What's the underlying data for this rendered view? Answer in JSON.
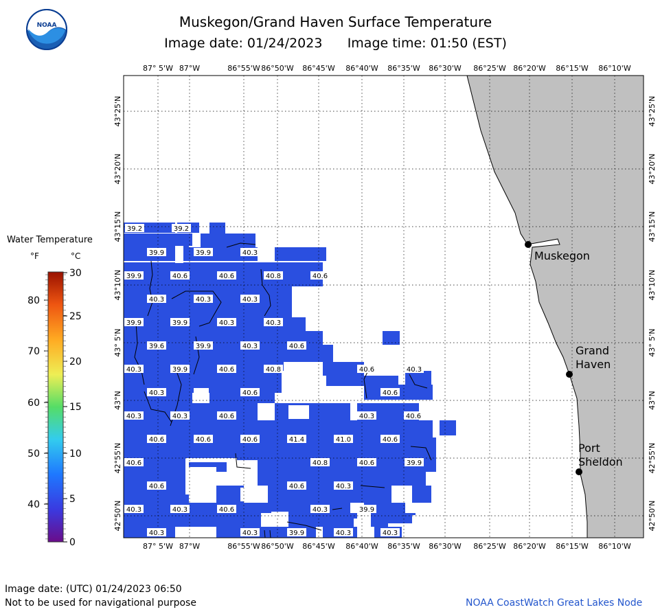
{
  "title": "Muskegon/Grand Haven Surface Temperature",
  "image_date_label": "Image date: 01/24/2023",
  "image_time_label": "Image time: 01:50 (EST)",
  "lon_labels": [
    "87° 5'W",
    "87°W",
    "86°55'W",
    "86°50'W",
    "86°45'W",
    "86°40'W",
    "86°35'W",
    "86°30'W",
    "86°25'W",
    "86°20'W",
    "86°15'W",
    "86°10'W"
  ],
  "lat_labels": [
    "43°25'N",
    "43°20'N",
    "43°15'N",
    "43°10'N",
    "43° 5'N",
    "43°N",
    "42°55'N",
    "42°50'N"
  ],
  "legend": {
    "title": "Water Temperature",
    "unit_f": "°F",
    "unit_c": "°C",
    "f_ticks": [
      "80",
      "70",
      "60",
      "50",
      "40"
    ],
    "c_ticks": [
      "30",
      "25",
      "20",
      "15",
      "10",
      "5",
      "0"
    ]
  },
  "cities": [
    {
      "name": "Muskegon"
    },
    {
      "name": "Grand Haven"
    },
    {
      "name": "Port Sheldon"
    }
  ],
  "temperature_labels": [
    [
      "39.2",
      "39.2"
    ],
    [
      "39.9",
      "39.9",
      "40.3"
    ],
    [
      "39.9",
      "40.6",
      "40.6",
      "40.8",
      "40.6"
    ],
    [
      "40.3",
      "40.3",
      "40.3"
    ],
    [
      "39.9",
      "39.9",
      "40.3",
      "40.3"
    ],
    [
      "39.6",
      "39.9",
      "40.3",
      "40.6"
    ],
    [
      "40.3",
      "39.9",
      "40.6",
      "40.8",
      "40.6",
      "40.3"
    ],
    [
      "40.3",
      "40.6",
      "40.6"
    ],
    [
      "40.3",
      "40.3",
      "40.6",
      "40.3",
      "40.6"
    ],
    [
      "40.6",
      "40.6",
      "40.6",
      "41.4",
      "41.0",
      "40.6"
    ],
    [
      "40.6",
      "40.8",
      "40.6",
      "39.9"
    ],
    [
      "40.6",
      "40.6",
      "40.3"
    ],
    [
      "40.3",
      "40.3",
      "40.6",
      "40.3",
      "39.9"
    ],
    [
      "40.3",
      "40.3",
      "39.9",
      "40.3",
      "40.3"
    ]
  ],
  "footer": {
    "utc_date": "Image date: (UTC) 01/24/2023  06:50",
    "disclaimer": "Not to be used for navigational purpose",
    "credit": "NOAA CoastWatch Great Lakes Node"
  },
  "logo_text": "NOAA",
  "colors": {
    "water": "#2a4fe0",
    "land": "#c0c0c0",
    "credit": "#2255cc"
  }
}
